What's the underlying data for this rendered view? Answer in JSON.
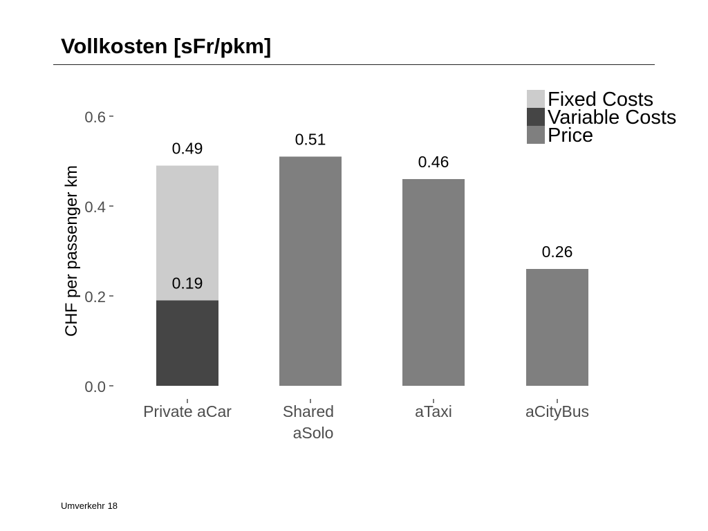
{
  "slide": {
    "title": "Vollkosten [sFr/pkm]",
    "footer_text": "Umverkehr",
    "page_number": "18"
  },
  "chart_data": {
    "type": "bar",
    "stacked": true,
    "ylabel": "CHF per passenger km",
    "xlabel": "",
    "ylim": [
      0,
      0.6
    ],
    "yticks": [
      "0.0",
      "0.2",
      "0.4",
      "0.6"
    ],
    "grid": false,
    "legend_position": "top-right",
    "categories": [
      {
        "line1": "Private aCar",
        "line2": ""
      },
      {
        "line1": "Shared",
        "line2": "aSolo"
      },
      {
        "line1": "aTaxi",
        "line2": ""
      },
      {
        "line1": "aCityBus",
        "line2": ""
      }
    ],
    "series": [
      {
        "name": "Fixed Costs",
        "color": "#cccccc",
        "values": [
          0.3,
          0,
          0,
          0
        ]
      },
      {
        "name": "Variable Costs",
        "color": "#454545",
        "values": [
          0.19,
          0,
          0,
          0
        ]
      },
      {
        "name": "Price",
        "color": "#7f7f7f",
        "values": [
          0,
          0.51,
          0.46,
          0.26
        ]
      }
    ],
    "stack_order": [
      "Variable Costs",
      "Fixed Costs",
      "Price"
    ],
    "data_labels": [
      {
        "category": 0,
        "value": 0.49,
        "text": "0.49"
      },
      {
        "category": 0,
        "value": 0.19,
        "text": "0.19"
      },
      {
        "category": 1,
        "value": 0.51,
        "text": "0.51"
      },
      {
        "category": 2,
        "value": 0.46,
        "text": "0.46"
      },
      {
        "category": 3,
        "value": 0.26,
        "text": "0.26"
      }
    ]
  }
}
